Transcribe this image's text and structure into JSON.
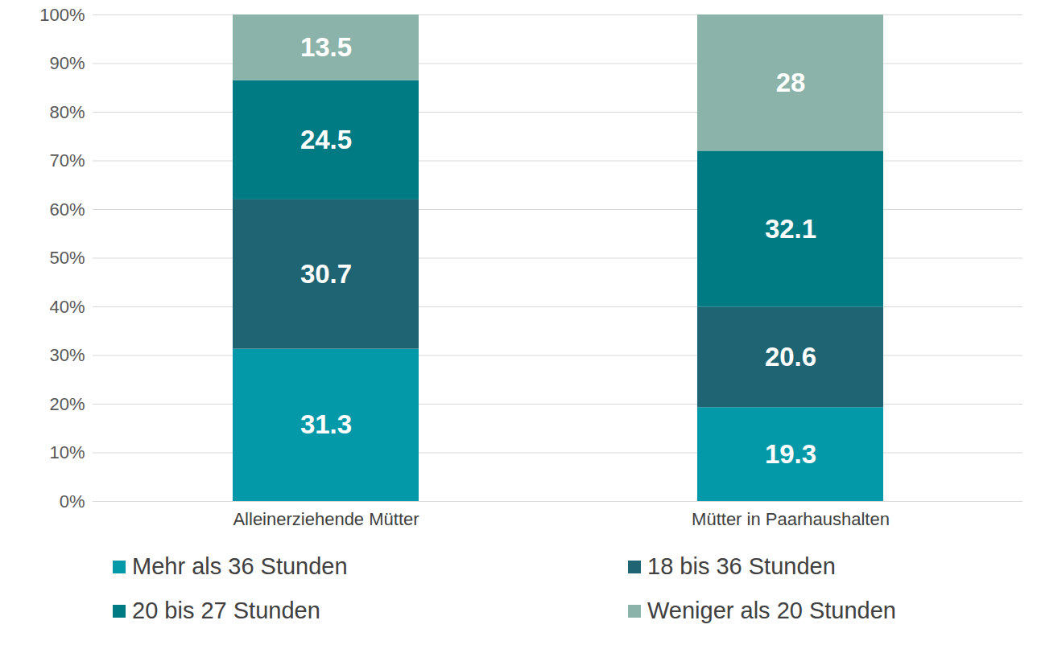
{
  "chart_data": {
    "type": "bar",
    "stacked": true,
    "data_labels": true,
    "grid": true,
    "legend": "bottom",
    "categories": [
      "Alleinerziehende Mütter",
      "Mütter in Paarhaushalten"
    ],
    "series": [
      {
        "name": "Mehr als 36 Stunden",
        "color": "#0499a8",
        "values": [
          31.3,
          19.3
        ]
      },
      {
        "name": "18 bis 36 Stunden",
        "color": "#1e6472",
        "values": [
          30.7,
          20.6
        ]
      },
      {
        "name": "20 bis 27 Stunden",
        "color": "#007b84",
        "values": [
          24.5,
          32.1
        ]
      },
      {
        "name": "Weniger als 20 Stunden",
        "color": "#8bb3a9",
        "values": [
          13.5,
          28
        ]
      }
    ],
    "ylim": [
      0,
      100
    ],
    "yticks": [
      {
        "value": 0,
        "label": "0%"
      },
      {
        "value": 10,
        "label": "10%"
      },
      {
        "value": 20,
        "label": "20%"
      },
      {
        "value": 30,
        "label": "30%"
      },
      {
        "value": 40,
        "label": "40%"
      },
      {
        "value": 50,
        "label": "50%"
      },
      {
        "value": 60,
        "label": "60%"
      },
      {
        "value": 70,
        "label": "70%"
      },
      {
        "value": 80,
        "label": "80%"
      },
      {
        "value": 90,
        "label": "90%"
      },
      {
        "value": 100,
        "label": "100%"
      }
    ]
  }
}
